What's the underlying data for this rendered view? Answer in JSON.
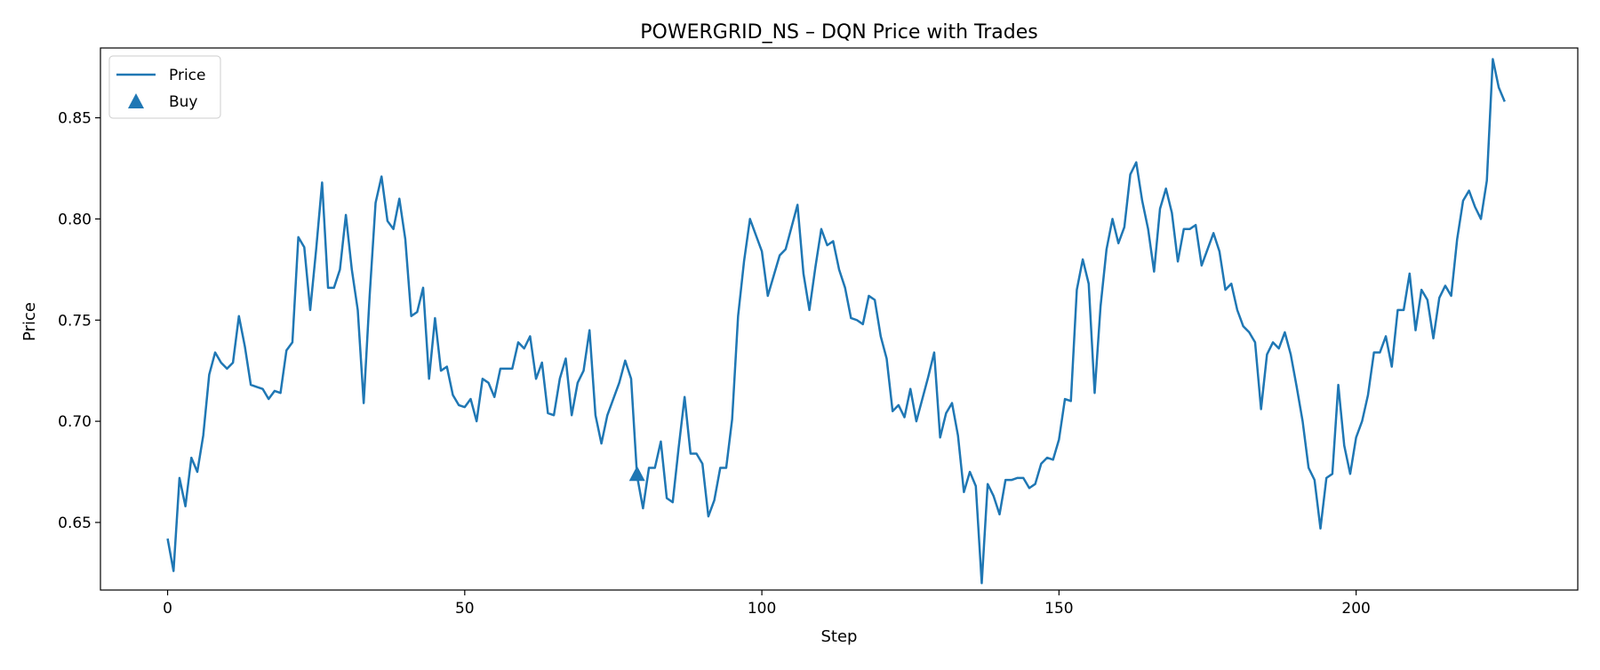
{
  "chart_data": {
    "type": "line",
    "title": "POWERGRID_NS – DQN Price with Trades",
    "xlabel": "Step",
    "ylabel": "Price",
    "xlim": [
      -11.3,
      237.3
    ],
    "ylim": [
      0.6166,
      0.8845
    ],
    "xticks": [
      0,
      50,
      100,
      150,
      200
    ],
    "yticks": [
      0.65,
      0.7,
      0.75,
      0.8,
      0.85
    ],
    "ytick_labels": [
      "0.65",
      "0.70",
      "0.75",
      "0.80",
      "0.85"
    ],
    "grid": false,
    "legend": {
      "position": "top-left",
      "entries": [
        {
          "label": "Price",
          "marker": "line"
        },
        {
          "label": "Buy",
          "marker": "triangle-up"
        }
      ]
    },
    "colors": {
      "price": "#1f77b4",
      "buy": "#1f77b4"
    },
    "series": [
      {
        "name": "Price",
        "x_start": 0,
        "x_step": 1,
        "values": [
          0.642,
          0.626,
          0.672,
          0.658,
          0.682,
          0.675,
          0.693,
          0.723,
          0.734,
          0.729,
          0.726,
          0.729,
          0.752,
          0.737,
          0.718,
          0.717,
          0.716,
          0.711,
          0.715,
          0.714,
          0.735,
          0.739,
          0.791,
          0.786,
          0.755,
          0.785,
          0.818,
          0.766,
          0.766,
          0.775,
          0.802,
          0.775,
          0.755,
          0.709,
          0.762,
          0.808,
          0.821,
          0.799,
          0.795,
          0.81,
          0.79,
          0.752,
          0.754,
          0.766,
          0.721,
          0.751,
          0.725,
          0.727,
          0.713,
          0.708,
          0.707,
          0.711,
          0.7,
          0.721,
          0.719,
          0.712,
          0.726,
          0.726,
          0.726,
          0.739,
          0.736,
          0.742,
          0.721,
          0.729,
          0.704,
          0.703,
          0.721,
          0.731,
          0.703,
          0.719,
          0.725,
          0.745,
          0.703,
          0.689,
          0.703,
          0.711,
          0.719,
          0.73,
          0.721,
          0.673,
          0.657,
          0.677,
          0.677,
          0.69,
          0.662,
          0.66,
          0.687,
          0.712,
          0.684,
          0.684,
          0.679,
          0.653,
          0.661,
          0.677,
          0.677,
          0.701,
          0.752,
          0.779,
          0.8,
          0.792,
          0.784,
          0.762,
          0.772,
          0.782,
          0.785,
          0.796,
          0.807,
          0.773,
          0.755,
          0.776,
          0.795,
          0.787,
          0.789,
          0.775,
          0.766,
          0.751,
          0.75,
          0.748,
          0.762,
          0.76,
          0.742,
          0.731,
          0.705,
          0.708,
          0.702,
          0.716,
          0.7,
          0.711,
          0.722,
          0.734,
          0.692,
          0.704,
          0.709,
          0.693,
          0.665,
          0.675,
          0.668,
          0.62,
          0.669,
          0.663,
          0.654,
          0.671,
          0.671,
          0.672,
          0.672,
          0.667,
          0.669,
          0.679,
          0.682,
          0.681,
          0.691,
          0.711,
          0.71,
          0.765,
          0.78,
          0.768,
          0.714,
          0.757,
          0.785,
          0.8,
          0.788,
          0.796,
          0.822,
          0.828,
          0.809,
          0.795,
          0.774,
          0.805,
          0.815,
          0.803,
          0.779,
          0.795,
          0.795,
          0.797,
          0.777,
          0.785,
          0.793,
          0.784,
          0.765,
          0.768,
          0.755,
          0.747,
          0.744,
          0.739,
          0.706,
          0.733,
          0.739,
          0.736,
          0.744,
          0.733,
          0.717,
          0.7,
          0.677,
          0.671,
          0.647,
          0.672,
          0.674,
          0.718,
          0.688,
          0.674,
          0.692,
          0.7,
          0.713,
          0.734,
          0.734,
          0.742,
          0.727,
          0.755,
          0.755,
          0.773,
          0.745,
          0.765,
          0.76,
          0.741,
          0.761,
          0.767,
          0.762,
          0.79,
          0.809,
          0.814,
          0.806,
          0.8,
          0.819,
          0.879,
          0.865,
          0.858
        ]
      },
      {
        "name": "Buy",
        "type": "scatter",
        "marker": "triangle-up",
        "points": [
          {
            "x": 79,
            "y": 0.674
          }
        ]
      }
    ]
  }
}
